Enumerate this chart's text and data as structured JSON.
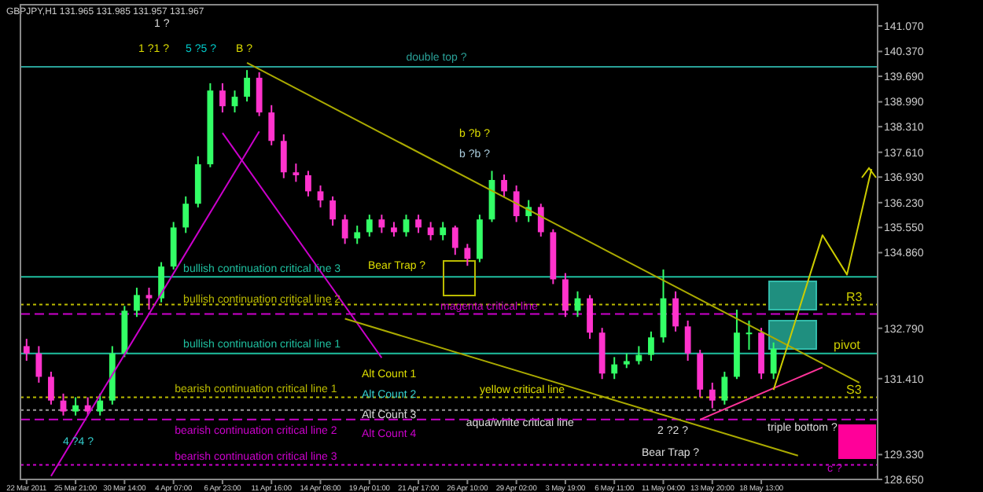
{
  "chart_data": {
    "type": "candlestick",
    "subtitle": "GBPJPY,H1 131.965 131.985 131.957 131.967",
    "categories": [
      "22 Mar 2011",
      null,
      null,
      null,
      "25 Mar 21:00",
      null,
      null,
      null,
      "30 Mar 14:00",
      null,
      null,
      null,
      "4 Apr 07:00",
      null,
      null,
      null,
      "6 Apr 23:00",
      null,
      null,
      null,
      "11 Apr 16:00",
      null,
      null,
      null,
      "14 Apr 08:00",
      null,
      null,
      null,
      "19 Apr 01:00",
      null,
      null,
      null,
      "21 Apr 17:00",
      null,
      null,
      null,
      "26 Apr 10:00",
      null,
      null,
      null,
      "29 Apr 02:00",
      null,
      null,
      null,
      "3 May 19:00",
      null,
      null,
      null,
      "6 May 11:00",
      null,
      null,
      null,
      "11 May 04:00",
      null,
      null,
      null,
      "13 May 20:00",
      null,
      null,
      null,
      "18 May 13:00",
      null,
      null,
      null,
      null,
      null,
      null,
      null,
      null,
      null
    ],
    "ohlc": [
      [
        132.3,
        132.5,
        131.9,
        132.1
      ],
      [
        132.1,
        132.3,
        131.3,
        131.46
      ],
      [
        131.46,
        131.6,
        130.7,
        130.81
      ],
      [
        130.81,
        131.0,
        130.4,
        130.51
      ],
      [
        130.51,
        130.9,
        130.4,
        130.68
      ],
      [
        130.68,
        130.9,
        130.4,
        130.51
      ],
      [
        130.51,
        131.0,
        130.4,
        130.81
      ],
      [
        130.81,
        132.3,
        130.7,
        132.1
      ],
      [
        132.1,
        133.4,
        132.0,
        133.27
      ],
      [
        133.27,
        133.9,
        133.1,
        133.7
      ],
      [
        133.7,
        133.9,
        133.3,
        133.61
      ],
      [
        133.61,
        134.6,
        133.5,
        134.48
      ],
      [
        134.48,
        135.7,
        134.4,
        135.55
      ],
      [
        135.55,
        136.4,
        135.4,
        136.2
      ],
      [
        136.2,
        137.5,
        136.1,
        137.28
      ],
      [
        137.28,
        139.5,
        137.2,
        139.3
      ],
      [
        139.3,
        139.5,
        138.7,
        138.87
      ],
      [
        138.87,
        139.3,
        138.7,
        139.13
      ],
      [
        139.13,
        139.86,
        139.0,
        139.65
      ],
      [
        139.65,
        139.8,
        138.6,
        138.7
      ],
      [
        138.7,
        138.9,
        137.8,
        137.92
      ],
      [
        137.92,
        138.1,
        136.9,
        137.06
      ],
      [
        137.06,
        137.3,
        136.8,
        136.98
      ],
      [
        136.98,
        137.1,
        136.4,
        136.54
      ],
      [
        136.54,
        136.7,
        136.1,
        136.29
      ],
      [
        136.29,
        136.4,
        135.6,
        135.77
      ],
      [
        135.77,
        135.9,
        135.1,
        135.25
      ],
      [
        135.25,
        135.6,
        135.1,
        135.42
      ],
      [
        135.42,
        135.9,
        135.3,
        135.77
      ],
      [
        135.77,
        135.9,
        135.4,
        135.55
      ],
      [
        135.55,
        135.7,
        135.3,
        135.42
      ],
      [
        135.42,
        135.9,
        135.3,
        135.77
      ],
      [
        135.77,
        135.9,
        135.4,
        135.55
      ],
      [
        135.55,
        135.7,
        135.2,
        135.34
      ],
      [
        135.34,
        135.7,
        135.2,
        135.55
      ],
      [
        135.55,
        135.6,
        134.8,
        134.99
      ],
      [
        134.99,
        135.1,
        134.5,
        134.69
      ],
      [
        134.69,
        135.9,
        134.6,
        135.77
      ],
      [
        135.77,
        137.1,
        135.7,
        136.85
      ],
      [
        136.85,
        137.0,
        136.4,
        136.54
      ],
      [
        136.54,
        136.7,
        135.7,
        135.86
      ],
      [
        135.86,
        136.3,
        135.7,
        136.11
      ],
      [
        136.11,
        136.2,
        135.3,
        135.42
      ],
      [
        135.42,
        135.5,
        134.0,
        134.13
      ],
      [
        134.13,
        134.3,
        133.1,
        133.27
      ],
      [
        133.27,
        133.8,
        133.1,
        133.61
      ],
      [
        133.61,
        133.7,
        132.5,
        132.67
      ],
      [
        132.67,
        132.8,
        131.4,
        131.55
      ],
      [
        131.55,
        132.0,
        131.4,
        131.8
      ],
      [
        131.8,
        132.1,
        131.7,
        131.89
      ],
      [
        131.89,
        132.3,
        131.8,
        132.06
      ],
      [
        132.06,
        132.7,
        131.9,
        132.54
      ],
      [
        132.54,
        134.4,
        132.4,
        133.61
      ],
      [
        133.61,
        133.8,
        132.7,
        132.84
      ],
      [
        132.84,
        133.0,
        131.9,
        132.1
      ],
      [
        132.1,
        132.2,
        130.9,
        131.11
      ],
      [
        131.11,
        131.3,
        130.6,
        130.81
      ],
      [
        130.81,
        131.6,
        130.7,
        131.46
      ],
      [
        131.46,
        133.3,
        131.4,
        132.67
      ],
      [
        132.67,
        133.0,
        132.2,
        132.67
      ],
      [
        132.67,
        132.8,
        131.4,
        131.55
      ],
      [
        131.55,
        132.4,
        131.4,
        132.23
      ],
      null,
      null,
      null,
      null,
      null,
      null,
      null,
      null
    ],
    "colors": [
      "#ff33cc",
      "#ff33cc",
      "#ff33cc",
      "#ff33cc",
      "#33ff66",
      "#ff33cc",
      "#33ff66",
      "#33ff66",
      "#33ff66",
      "#33ff66",
      "#ff33cc",
      "#33ff66",
      "#33ff66",
      "#33ff66",
      "#33ff66",
      "#33ff66",
      "#ff33cc",
      "#33ff66",
      "#33ff66",
      "#ff33cc",
      "#ff33cc",
      "#ff33cc",
      "#ff33cc",
      "#ff33cc",
      "#ff33cc",
      "#ff33cc",
      "#ff33cc",
      "#33ff66",
      "#33ff66",
      "#ff33cc",
      "#ff33cc",
      "#33ff66",
      "#ff33cc",
      "#ff33cc",
      "#33ff66",
      "#ff33cc",
      "#ff33cc",
      "#33ff66",
      "#33ff66",
      "#ff33cc",
      "#ff33cc",
      "#33ff66",
      "#ff33cc",
      "#ff33cc",
      "#ff33cc",
      "#33ff66",
      "#ff33cc",
      "#ff33cc",
      "#33ff66",
      "#33ff66",
      "#33ff66",
      "#33ff66",
      "#33ff66",
      "#ff33cc",
      "#ff33cc",
      "#ff33cc",
      "#ff33cc",
      "#33ff66",
      "#33ff66",
      "#33ff66",
      "#ff33cc",
      "#33ff66",
      null,
      null,
      null,
      null,
      null,
      null,
      null,
      null
    ],
    "series": [
      {
        "type": "line",
        "color": "#cc00cc",
        "values": [
          null,
          null,
          128.74,
          null,
          null,
          null,
          null,
          null,
          null,
          null,
          null,
          null,
          null,
          null,
          null,
          null,
          null,
          null,
          null,
          138.18,
          null,
          null,
          null,
          null,
          null,
          null,
          null,
          null,
          null,
          null,
          null,
          null,
          null,
          null,
          null,
          null,
          null,
          null,
          null,
          null,
          null,
          null,
          null,
          null,
          null,
          null,
          null,
          null,
          null,
          null,
          null,
          null,
          null,
          null,
          null,
          null,
          null,
          null,
          null,
          null,
          null,
          null,
          null,
          null,
          null,
          null,
          null,
          null,
          null,
          null
        ]
      },
      {
        "type": "line",
        "color": "#cc00cc",
        "values": [
          null,
          null,
          null,
          null,
          null,
          null,
          null,
          null,
          null,
          null,
          null,
          null,
          null,
          null,
          null,
          null,
          138.14,
          null,
          null,
          null,
          null,
          null,
          null,
          null,
          null,
          null,
          null,
          null,
          null,
          131.98,
          null,
          null,
          null,
          null,
          null,
          null,
          null,
          null,
          null,
          null,
          null,
          null,
          null,
          null,
          null,
          null,
          null,
          null,
          null,
          null,
          null,
          null,
          null,
          null,
          null,
          null,
          null,
          null,
          null,
          null,
          null,
          null,
          null,
          null,
          null,
          null,
          null,
          null,
          null,
          null
        ]
      },
      {
        "type": "line",
        "color": "#aaaa00",
        "values": [
          null,
          null,
          null,
          null,
          null,
          null,
          null,
          null,
          null,
          null,
          null,
          null,
          null,
          null,
          null,
          null,
          null,
          null,
          140.06,
          null,
          null,
          null,
          null,
          null,
          null,
          null,
          null,
          null,
          null,
          null,
          null,
          null,
          null,
          null,
          null,
          null,
          null,
          null,
          null,
          null,
          null,
          null,
          null,
          null,
          null,
          null,
          null,
          null,
          null,
          null,
          null,
          null,
          null,
          null,
          null,
          null,
          null,
          null,
          null,
          null,
          null,
          null,
          null,
          null,
          null,
          null,
          null,
          null,
          131.3,
          null
        ]
      },
      {
        "type": "line",
        "color": "#aaaa00",
        "values": [
          null,
          null,
          null,
          null,
          null,
          null,
          null,
          null,
          null,
          null,
          null,
          null,
          null,
          null,
          null,
          null,
          null,
          null,
          null,
          null,
          null,
          null,
          null,
          null,
          null,
          null,
          133.05,
          null,
          null,
          null,
          null,
          null,
          null,
          null,
          null,
          null,
          null,
          null,
          null,
          null,
          null,
          null,
          null,
          null,
          null,
          null,
          null,
          null,
          null,
          null,
          null,
          null,
          null,
          null,
          null,
          null,
          null,
          null,
          null,
          null,
          null,
          null,
          null,
          129.3,
          null,
          null,
          null,
          null,
          null,
          null
        ]
      },
      {
        "type": "line",
        "color": "#ff3399",
        "values": [
          null,
          null,
          null,
          null,
          null,
          null,
          null,
          null,
          null,
          null,
          null,
          null,
          null,
          null,
          null,
          null,
          null,
          null,
          null,
          null,
          null,
          null,
          null,
          null,
          null,
          null,
          null,
          null,
          null,
          null,
          null,
          null,
          null,
          null,
          null,
          null,
          null,
          null,
          null,
          null,
          null,
          null,
          null,
          null,
          null,
          null,
          null,
          null,
          null,
          null,
          null,
          null,
          null,
          null,
          null,
          130.29,
          null,
          null,
          null,
          null,
          null,
          null,
          null,
          null,
          null,
          131.72,
          null,
          null,
          null,
          null
        ]
      },
      {
        "type": "line",
        "color": "#cccc00",
        "values": [
          null,
          null,
          null,
          null,
          null,
          null,
          null,
          null,
          null,
          null,
          null,
          null,
          null,
          null,
          null,
          null,
          null,
          null,
          null,
          null,
          null,
          null,
          null,
          null,
          null,
          null,
          null,
          null,
          null,
          null,
          null,
          null,
          null,
          null,
          null,
          null,
          null,
          null,
          null,
          null,
          null,
          null,
          null,
          null,
          null,
          null,
          null,
          null,
          null,
          null,
          null,
          null,
          null,
          null,
          null,
          null,
          null,
          null,
          null,
          null,
          null,
          131.1,
          null,
          null,
          null,
          135.34,
          null,
          134.26,
          null,
          137.15
        ]
      }
    ],
    "ylim": [
      128.65,
      141.65
    ],
    "yticks": [
      {
        "value": 141.07,
        "label": "141.070"
      },
      {
        "value": 140.37,
        "label": "140.370"
      },
      {
        "value": 139.69,
        "label": "139.690"
      },
      {
        "value": 138.99,
        "label": "138.990"
      },
      {
        "value": 138.31,
        "label": "138.310"
      },
      {
        "value": 137.61,
        "label": "137.610"
      },
      {
        "value": 136.93,
        "label": "136.930"
      },
      {
        "value": 136.23,
        "label": "136.230"
      },
      {
        "value": 135.55,
        "label": "135.550"
      },
      {
        "value": 134.86,
        "label": "134.860"
      },
      {
        "value": 132.79,
        "label": "132.790"
      },
      {
        "value": 131.41,
        "label": "131.410"
      },
      {
        "value": 129.33,
        "label": "129.330"
      },
      {
        "value": 128.65,
        "label": "128.650"
      }
    ],
    "ref_lines": [
      {
        "axis": "y",
        "value": 139.95,
        "label": "double top ?",
        "color": "#2aa198",
        "line_style": "solid"
      },
      {
        "axis": "y",
        "value": 134.2,
        "label": "bullish continuation critical line 3",
        "color": "#1fbf9f",
        "line_style": "solid"
      },
      {
        "axis": "y",
        "value": 133.44,
        "label": "bullish continuation critical line 2",
        "color": "#bbbb00",
        "line_style": "dotted"
      },
      {
        "axis": "y",
        "value": 133.18,
        "label": "magenta critical line",
        "color": "#cc00cc",
        "line_style": "dashed"
      },
      {
        "axis": "y",
        "value": 132.1,
        "label": "bullish continuation critical line 1",
        "color": "#1fbf9f",
        "line_style": "solid"
      },
      {
        "axis": "y",
        "value": 130.9,
        "label": "bearish continuation critical line 1",
        "color": "#bbbb00",
        "line_style": "dotted"
      },
      {
        "axis": "y",
        "value": 130.55,
        "label": "aqua/white critical line",
        "color": "#999999",
        "line_style": "dotted"
      },
      {
        "axis": "y",
        "value": 130.29,
        "label": "bearish continuation critical line 2",
        "color": "#cc00cc",
        "line_style": "dashed"
      },
      {
        "axis": "y",
        "value": 129.05,
        "label": "bearish continuation critical line 3",
        "color": "#cc00cc",
        "line_style": "dotted"
      }
    ],
    "annotations": [
      "1 ?1 ?",
      "1 ?",
      "5 ?5 ?",
      "B ?",
      "b ?b ?",
      "b ?b ?",
      "Bear Trap ?",
      "Alt Count 1",
      "Alt Count 2",
      "Alt Count 3",
      "Alt Count 4",
      "4 ?4 ?",
      "yellow critical line",
      "2 ?2 ?",
      "Bear Trap ?",
      "triple bottom ?",
      "c ?",
      {
        "text": "R3",
        "y": 133.44
      },
      {
        "text": "pivot",
        "y": 132.14
      },
      {
        "text": "S3",
        "y": 130.9
      }
    ]
  }
}
